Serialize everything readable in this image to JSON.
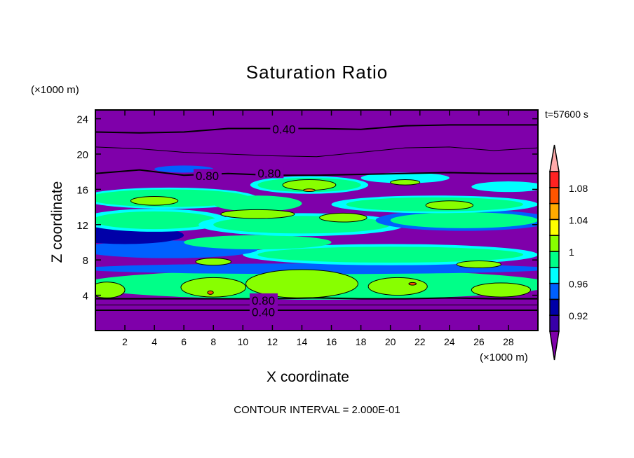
{
  "chart_data": {
    "type": "heatmap",
    "subtype": "filled-contour",
    "title": "Saturation Ratio",
    "xlabel": "X coordinate",
    "ylabel": "Z coordinate",
    "x_unit": "(×1000 m)",
    "y_unit": "(×1000 m)",
    "time_label": "t=57600 s",
    "footer": "CONTOUR INTERVAL = 2.000E-01",
    "xlim": [
      0,
      30
    ],
    "ylim": [
      0,
      25
    ],
    "x_ticks": [
      2,
      4,
      6,
      8,
      10,
      12,
      14,
      16,
      18,
      20,
      22,
      24,
      26,
      28
    ],
    "y_ticks": [
      4,
      8,
      12,
      16,
      20,
      24
    ],
    "colorbar": {
      "levels": [
        0.9,
        0.92,
        0.94,
        0.96,
        0.98,
        1.0,
        1.02,
        1.04,
        1.06,
        1.08,
        1.1
      ],
      "labels": [
        "1.08",
        "1.04",
        "1",
        "0.96",
        "0.92"
      ],
      "label_values": [
        1.08,
        1.04,
        1.0,
        0.96,
        0.92
      ],
      "colors": [
        "#7F00AA",
        "#3800A8",
        "#0000A8",
        "#0060FF",
        "#00FFFF",
        "#00FF88",
        "#88FF00",
        "#FFFF00",
        "#FFAA00",
        "#FF5500",
        "#FF2222",
        "#FFAAAA"
      ]
    },
    "contour_labels": [
      {
        "text": "0.40",
        "x": 12.0,
        "z": 22.9
      },
      {
        "text": "0.80",
        "x": 6.8,
        "z": 17.6
      },
      {
        "text": "0.80",
        "x": 11.0,
        "z": 17.9
      },
      {
        "text": "0.80",
        "x": 10.6,
        "z": 3.5
      },
      {
        "text": "0.40",
        "x": 10.6,
        "z": 2.2
      }
    ],
    "contour_lines": [
      {
        "z": [
          22.5,
          22.4,
          22.5,
          22.9,
          22.9,
          22.9,
          22.8,
          23.2,
          23.3,
          23.3,
          23.3
        ],
        "width": 2
      },
      {
        "z": [
          20.8,
          20.6,
          20.2,
          20.0,
          19.8,
          19.7,
          20.2,
          20.7,
          20.8,
          20.4,
          20.7
        ],
        "width": 1
      },
      {
        "z": [
          17.8,
          18.2,
          17.6,
          17.8,
          17.6,
          17.6,
          17.7,
          17.8,
          17.9,
          17.8,
          17.8
        ],
        "width": 2
      },
      {
        "z": [
          3.6,
          3.6,
          3.6,
          3.6,
          3.6,
          3.7,
          3.6,
          3.6,
          3.7,
          3.6,
          3.6
        ],
        "width": 2
      },
      {
        "z": [
          2.9,
          2.9,
          2.9,
          2.9,
          2.9,
          2.9,
          2.9,
          2.9,
          2.9,
          2.9,
          2.9
        ],
        "width": 1
      },
      {
        "z": [
          2.3,
          2.3,
          2.3,
          2.3,
          2.3,
          2.3,
          2.3,
          2.3,
          2.3,
          2.3,
          2.3
        ],
        "width": 2
      }
    ],
    "regions": [
      {
        "x": 15,
        "z": 5.2,
        "rx": 16,
        "rz": 1.7,
        "c": 5
      },
      {
        "x": 15,
        "z": 7.0,
        "rx": 16,
        "rz": 0.6,
        "c": 3
      },
      {
        "x": 20,
        "z": 8.6,
        "rx": 10,
        "rz": 1.2,
        "c": 4
      },
      {
        "x": 20,
        "z": 8.6,
        "rx": 9,
        "rz": 0.9,
        "c": 5
      },
      {
        "x": 5,
        "z": 9.2,
        "rx": 6,
        "rz": 1.0,
        "c": 3
      },
      {
        "x": 11,
        "z": 10.0,
        "rx": 5,
        "rz": 0.8,
        "c": 5
      },
      {
        "x": 2,
        "z": 10.8,
        "rx": 4,
        "rz": 1.0,
        "c": 2
      },
      {
        "x": 4,
        "z": 12.5,
        "rx": 5,
        "rz": 1.3,
        "c": 4
      },
      {
        "x": 4,
        "z": 12.5,
        "rx": 4.2,
        "rz": 1.0,
        "c": 5
      },
      {
        "x": 14,
        "z": 12.0,
        "rx": 7,
        "rz": 1.3,
        "c": 4
      },
      {
        "x": 14,
        "z": 12.0,
        "rx": 6,
        "rz": 1.0,
        "c": 5
      },
      {
        "x": 25,
        "z": 12.5,
        "rx": 6,
        "rz": 1.2,
        "c": 3
      },
      {
        "x": 25,
        "z": 12.5,
        "rx": 5,
        "rz": 0.9,
        "c": 5
      },
      {
        "x": 5,
        "z": 15.0,
        "rx": 6,
        "rz": 1.2,
        "c": 4
      },
      {
        "x": 5,
        "z": 15.0,
        "rx": 5.5,
        "rz": 1.0,
        "c": 5
      },
      {
        "x": 11,
        "z": 14.4,
        "rx": 3,
        "rz": 0.9,
        "c": 5
      },
      {
        "x": 23,
        "z": 14.3,
        "rx": 7,
        "rz": 1.0,
        "c": 4
      },
      {
        "x": 23,
        "z": 14.3,
        "rx": 6,
        "rz": 0.8,
        "c": 5
      },
      {
        "x": 14.5,
        "z": 16.5,
        "rx": 4,
        "rz": 1.0,
        "c": 4
      },
      {
        "x": 14.5,
        "z": 16.5,
        "rx": 3.5,
        "rz": 0.8,
        "c": 5
      },
      {
        "x": 21,
        "z": 17.3,
        "rx": 3,
        "rz": 0.6,
        "c": 4
      },
      {
        "x": 28,
        "z": 16.3,
        "rx": 2.5,
        "rz": 0.6,
        "c": 4
      },
      {
        "x": 6,
        "z": 18.3,
        "rx": 2,
        "rz": 0.4,
        "c": 3
      },
      {
        "x": 8,
        "z": 4.9,
        "rx": 2.2,
        "rz": 1.1,
        "c": 6
      },
      {
        "x": 14,
        "z": 5.3,
        "rx": 3.8,
        "rz": 1.6,
        "c": 6
      },
      {
        "x": 20.5,
        "z": 5.0,
        "rx": 2,
        "rz": 1.0,
        "c": 6
      },
      {
        "x": 27.5,
        "z": 4.6,
        "rx": 2,
        "rz": 0.8,
        "c": 6
      },
      {
        "x": 0.8,
        "z": 4.6,
        "rx": 1.2,
        "rz": 0.9,
        "c": 6
      },
      {
        "x": 11,
        "z": 13.2,
        "rx": 2.5,
        "rz": 0.5,
        "c": 6
      },
      {
        "x": 14.5,
        "z": 16.5,
        "rx": 1.8,
        "rz": 0.6,
        "c": 6
      },
      {
        "x": 4,
        "z": 14.7,
        "rx": 1.6,
        "rz": 0.5,
        "c": 6
      },
      {
        "x": 24,
        "z": 14.2,
        "rx": 1.6,
        "rz": 0.5,
        "c": 6
      },
      {
        "x": 16.8,
        "z": 12.8,
        "rx": 1.6,
        "rz": 0.5,
        "c": 6
      },
      {
        "x": 8,
        "z": 7.8,
        "rx": 1.2,
        "rz": 0.4,
        "c": 6
      },
      {
        "x": 26,
        "z": 7.5,
        "rx": 1.5,
        "rz": 0.4,
        "c": 6
      },
      {
        "x": 21,
        "z": 16.8,
        "rx": 1.0,
        "rz": 0.3,
        "c": 6
      },
      {
        "x": 7.8,
        "z": 4.3,
        "rx": 0.2,
        "rz": 0.2,
        "c": 9
      },
      {
        "x": 21.5,
        "z": 5.3,
        "rx": 0.25,
        "rz": 0.15,
        "c": 9
      },
      {
        "x": 14.5,
        "z": 15.9,
        "rx": 0.4,
        "rz": 0.15,
        "c": 8
      }
    ]
  }
}
